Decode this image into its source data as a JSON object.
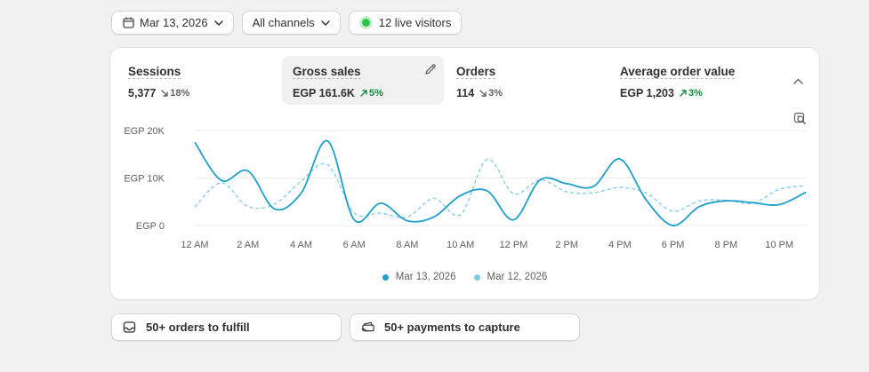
{
  "filters": {
    "date": "Mar 13, 2026",
    "channel": "All channels",
    "live_visitors": "12 live visitors"
  },
  "metrics": [
    {
      "label": "Sessions",
      "value": "5,377",
      "delta": "18%",
      "direction": "down"
    },
    {
      "label": "Gross sales",
      "value": "EGP 161.6K",
      "delta": "5%",
      "direction": "up"
    },
    {
      "label": "Orders",
      "value": "114",
      "delta": "3%",
      "direction": "down"
    },
    {
      "label": "Average order value",
      "value": "EGP 1,203",
      "delta": "3%",
      "direction": "up"
    }
  ],
  "colors": {
    "current": "#1f9fc9",
    "previous": "#7ccbe4",
    "up": "#0f8a3f",
    "down": "#616161"
  },
  "chart_data": {
    "type": "line",
    "y_ticks": [
      "EGP 20K",
      "EGP 10K",
      "EGP 0"
    ],
    "ylim": [
      0,
      20000
    ],
    "x_ticks": [
      "12 AM",
      "2 AM",
      "4 AM",
      "6 AM",
      "8 AM",
      "10 AM",
      "12 PM",
      "2 PM",
      "4 PM",
      "6 PM",
      "8 PM",
      "10 PM"
    ],
    "x": [
      0,
      1,
      2,
      3,
      4,
      5,
      6,
      7,
      8,
      9,
      10,
      11,
      12,
      13,
      14,
      15,
      16,
      17,
      18,
      19,
      20,
      21,
      22,
      23
    ],
    "series": [
      {
        "name": "Mar 13, 2026",
        "style": "solid",
        "values": [
          17500,
          9500,
          11500,
          3500,
          6800,
          17800,
          1200,
          4700,
          1000,
          1800,
          6300,
          7300,
          1200,
          9600,
          8800,
          8200,
          14000,
          5300,
          0,
          4000,
          5200,
          4800,
          4400,
          7000
        ]
      },
      {
        "name": "Mar 12, 2026",
        "style": "dashed",
        "values": [
          3900,
          9000,
          4000,
          4500,
          9300,
          12800,
          2700,
          2600,
          1800,
          5700,
          2300,
          13900,
          6700,
          9600,
          7100,
          6900,
          8000,
          6800,
          3000,
          5200,
          5300,
          4700,
          7600,
          8400
        ]
      }
    ]
  },
  "tasks": {
    "orders": "50+ orders to fulfill",
    "payments": "50+ payments to capture"
  }
}
